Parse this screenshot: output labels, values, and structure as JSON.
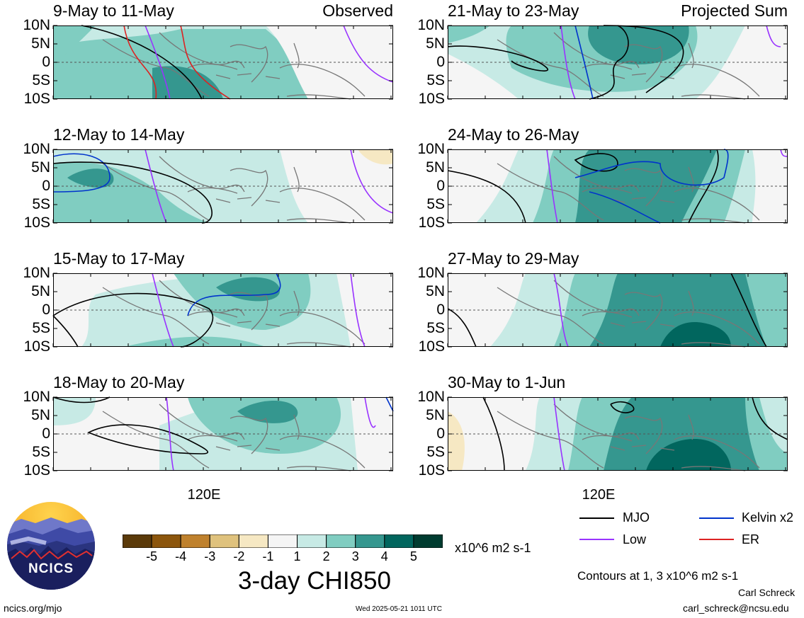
{
  "panels": [
    {
      "title": "9-May to 11-May",
      "label": "Observed",
      "kind": "obs0"
    },
    {
      "title": "12-May to 14-May",
      "label": "",
      "kind": "obs1"
    },
    {
      "title": "15-May to 17-May",
      "label": "",
      "kind": "obs2"
    },
    {
      "title": "18-May to 20-May",
      "label": "",
      "kind": "obs3"
    },
    {
      "title": "21-May to 23-May",
      "label": "Projected Sum",
      "kind": "proj0"
    },
    {
      "title": "24-May to 26-May",
      "label": "",
      "kind": "proj1"
    },
    {
      "title": "27-May to 29-May",
      "label": "",
      "kind": "proj2"
    },
    {
      "title": "30-May to 1-Jun",
      "label": "",
      "kind": "proj3"
    }
  ],
  "lat_labels": [
    "10N",
    "5N",
    "0",
    "5S",
    "10S"
  ],
  "lon_label": "120E",
  "colorbar": {
    "labels": [
      "-5",
      "-4",
      "-3",
      "-2",
      "-1",
      "1",
      "2",
      "3",
      "4",
      "5"
    ],
    "colors": [
      "#5b3a0a",
      "#8c560d",
      "#bf812d",
      "#dfc27d",
      "#f6e8c3",
      "#f5f5f5",
      "#c7eae5",
      "#80cdc1",
      "#35978f",
      "#01665e",
      "#003c30"
    ],
    "units": "x10^6 m2 s-1",
    "title": "3-day CHI850"
  },
  "legend": {
    "items": [
      {
        "label": "MJO",
        "color": "#000000"
      },
      {
        "label": "Kelvin x2",
        "color": "#0033cc"
      },
      {
        "label": "Low",
        "color": "#9933ff"
      },
      {
        "label": "ER",
        "color": "#dd2222"
      }
    ],
    "contours_note": "Contours at 1, 3 x10^6 m2 s-1"
  },
  "logo": {
    "text": "NCICS"
  },
  "footer": {
    "url": "ncics.org/mjo",
    "timestamp": "Wed 2025-05-21 1011 UTC",
    "author": "Carl Schreck",
    "email": "carl_schreck@ncsu.edu"
  }
}
